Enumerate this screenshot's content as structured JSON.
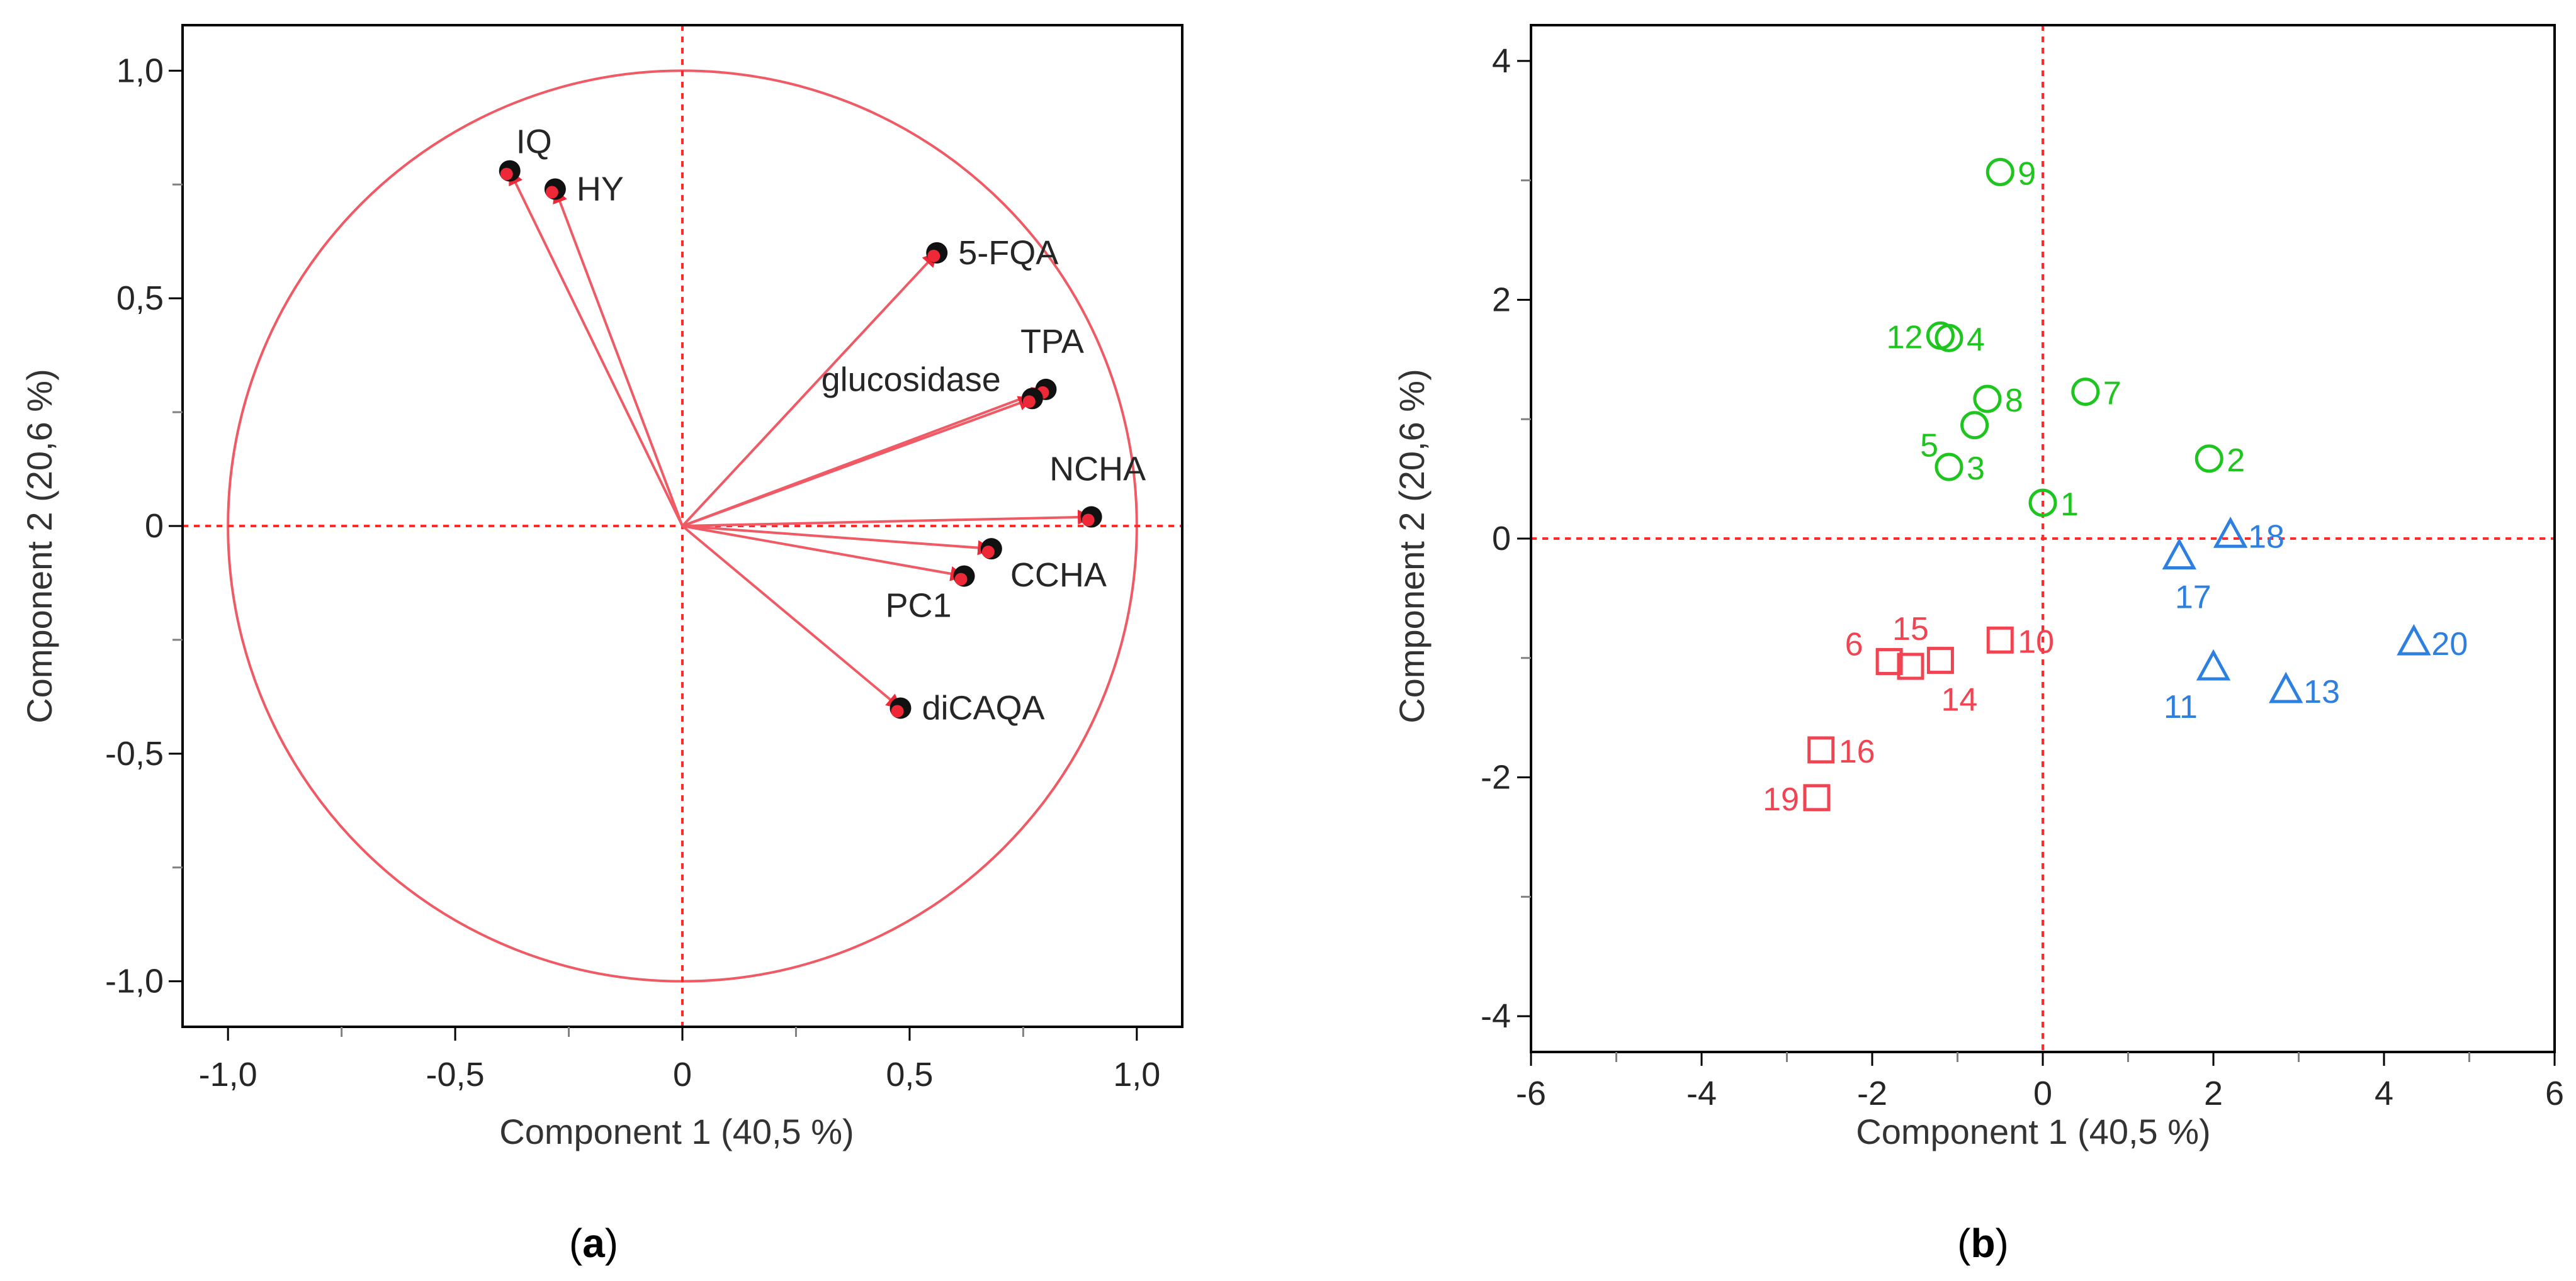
{
  "chart_data": [
    {
      "panel": "a",
      "type": "scatter",
      "subtype": "loading-plot",
      "caption": "(a)",
      "caption_letter": "a",
      "xlabel": "Component 1  (40,5 %)",
      "ylabel": "Component 2  (20,6 %)",
      "xlim": [
        -1.1,
        1.1
      ],
      "ylim": [
        -1.1,
        1.1
      ],
      "xticks": [
        "-1,0",
        "-0,5",
        "0",
        "0,5",
        "1,0"
      ],
      "xtick_values": [
        -1.0,
        -0.5,
        0.0,
        0.5,
        1.0
      ],
      "yticks": [
        "1,0",
        "0,5",
        "0",
        "-0,5",
        "-1,0"
      ],
      "ytick_values": [
        1.0,
        0.5,
        0.0,
        -0.5,
        -1.0
      ],
      "unit_circle_radius": 1.0,
      "zero_lines": true,
      "colors": {
        "arrow": "#ef5a65",
        "point": "#111111",
        "zero_line": "#ff2a2a"
      },
      "loadings": [
        {
          "name": "IQ",
          "x": -0.38,
          "y": 0.78,
          "label_pos": "above-right"
        },
        {
          "name": "HY",
          "x": -0.28,
          "y": 0.74,
          "label_pos": "right"
        },
        {
          "name": "5-FQA",
          "x": 0.56,
          "y": 0.6,
          "label_pos": "right"
        },
        {
          "name": "TPA",
          "x": 0.8,
          "y": 0.3,
          "label_pos": "above"
        },
        {
          "name": "glucosidase",
          "x": 0.77,
          "y": 0.28,
          "label_pos": "left"
        },
        {
          "name": "NCHA",
          "x": 0.9,
          "y": 0.02,
          "label_pos": "above"
        },
        {
          "name": "CCHA",
          "x": 0.68,
          "y": -0.05,
          "label_pos": "below-right"
        },
        {
          "name": "PC1",
          "x": 0.62,
          "y": -0.11,
          "label_pos": "below-left"
        },
        {
          "name": "diCAQA",
          "x": 0.48,
          "y": -0.4,
          "label_pos": "right"
        }
      ]
    },
    {
      "panel": "b",
      "type": "scatter",
      "subtype": "score-plot",
      "caption": "(b)",
      "caption_letter": "b",
      "xlabel": "Component 1  (40,5 %)",
      "ylabel": "Component 2  (20,6 %)",
      "xlim": [
        -6,
        6
      ],
      "ylim": [
        -4.3,
        4.3
      ],
      "xticks": [
        "-6",
        "-4",
        "-2",
        "0",
        "2",
        "4",
        "6"
      ],
      "xtick_values": [
        -6,
        -4,
        -2,
        0,
        2,
        4,
        6
      ],
      "yticks": [
        "4",
        "2",
        "0",
        "-2",
        "-4"
      ],
      "ytick_values": [
        4,
        2,
        0,
        -2,
        -4
      ],
      "zero_lines": true,
      "groups": [
        {
          "marker": "circle",
          "color": "#1fc51f",
          "points": [
            {
              "label": "1",
              "x": 0.0,
              "y": 0.3,
              "label_pos": "right"
            },
            {
              "label": "2",
              "x": 1.95,
              "y": 0.67,
              "label_pos": "right"
            },
            {
              "label": "3",
              "x": -1.1,
              "y": 0.6,
              "label_pos": "right"
            },
            {
              "label": "4",
              "x": -1.1,
              "y": 1.68,
              "label_pos": "right"
            },
            {
              "label": "5",
              "x": -0.8,
              "y": 0.95,
              "label_pos": "left-below"
            },
            {
              "label": "7",
              "x": 0.5,
              "y": 1.23,
              "label_pos": "right"
            },
            {
              "label": "8",
              "x": -0.65,
              "y": 1.17,
              "label_pos": "right"
            },
            {
              "label": "9",
              "x": -0.5,
              "y": 3.07,
              "label_pos": "right"
            },
            {
              "label": "12",
              "x": -1.2,
              "y": 1.7,
              "label_pos": "left"
            }
          ]
        },
        {
          "marker": "square",
          "color": "#f04452",
          "points": [
            {
              "label": "6",
              "x": -1.8,
              "y": -1.03,
              "label_pos": "left-above"
            },
            {
              "label": "10",
              "x": -0.5,
              "y": -0.85,
              "label_pos": "right"
            },
            {
              "label": "14",
              "x": -1.2,
              "y": -1.02,
              "label_pos": "below-right"
            },
            {
              "label": "15",
              "x": -1.55,
              "y": -1.07,
              "label_pos": "above"
            },
            {
              "label": "16",
              "x": -2.6,
              "y": -1.77,
              "label_pos": "right"
            },
            {
              "label": "19",
              "x": -2.65,
              "y": -2.17,
              "label_pos": "left"
            }
          ]
        },
        {
          "marker": "triangle",
          "color": "#2d7fe0",
          "points": [
            {
              "label": "11",
              "x": 2.0,
              "y": -1.08,
              "label_pos": "below-left"
            },
            {
              "label": "13",
              "x": 2.85,
              "y": -1.27,
              "label_pos": "right"
            },
            {
              "label": "17",
              "x": 1.6,
              "y": -0.15,
              "label_pos": "below"
            },
            {
              "label": "18",
              "x": 2.2,
              "y": 0.03,
              "label_pos": "right"
            },
            {
              "label": "20",
              "x": 4.35,
              "y": -0.87,
              "label_pos": "right"
            }
          ]
        }
      ]
    }
  ]
}
